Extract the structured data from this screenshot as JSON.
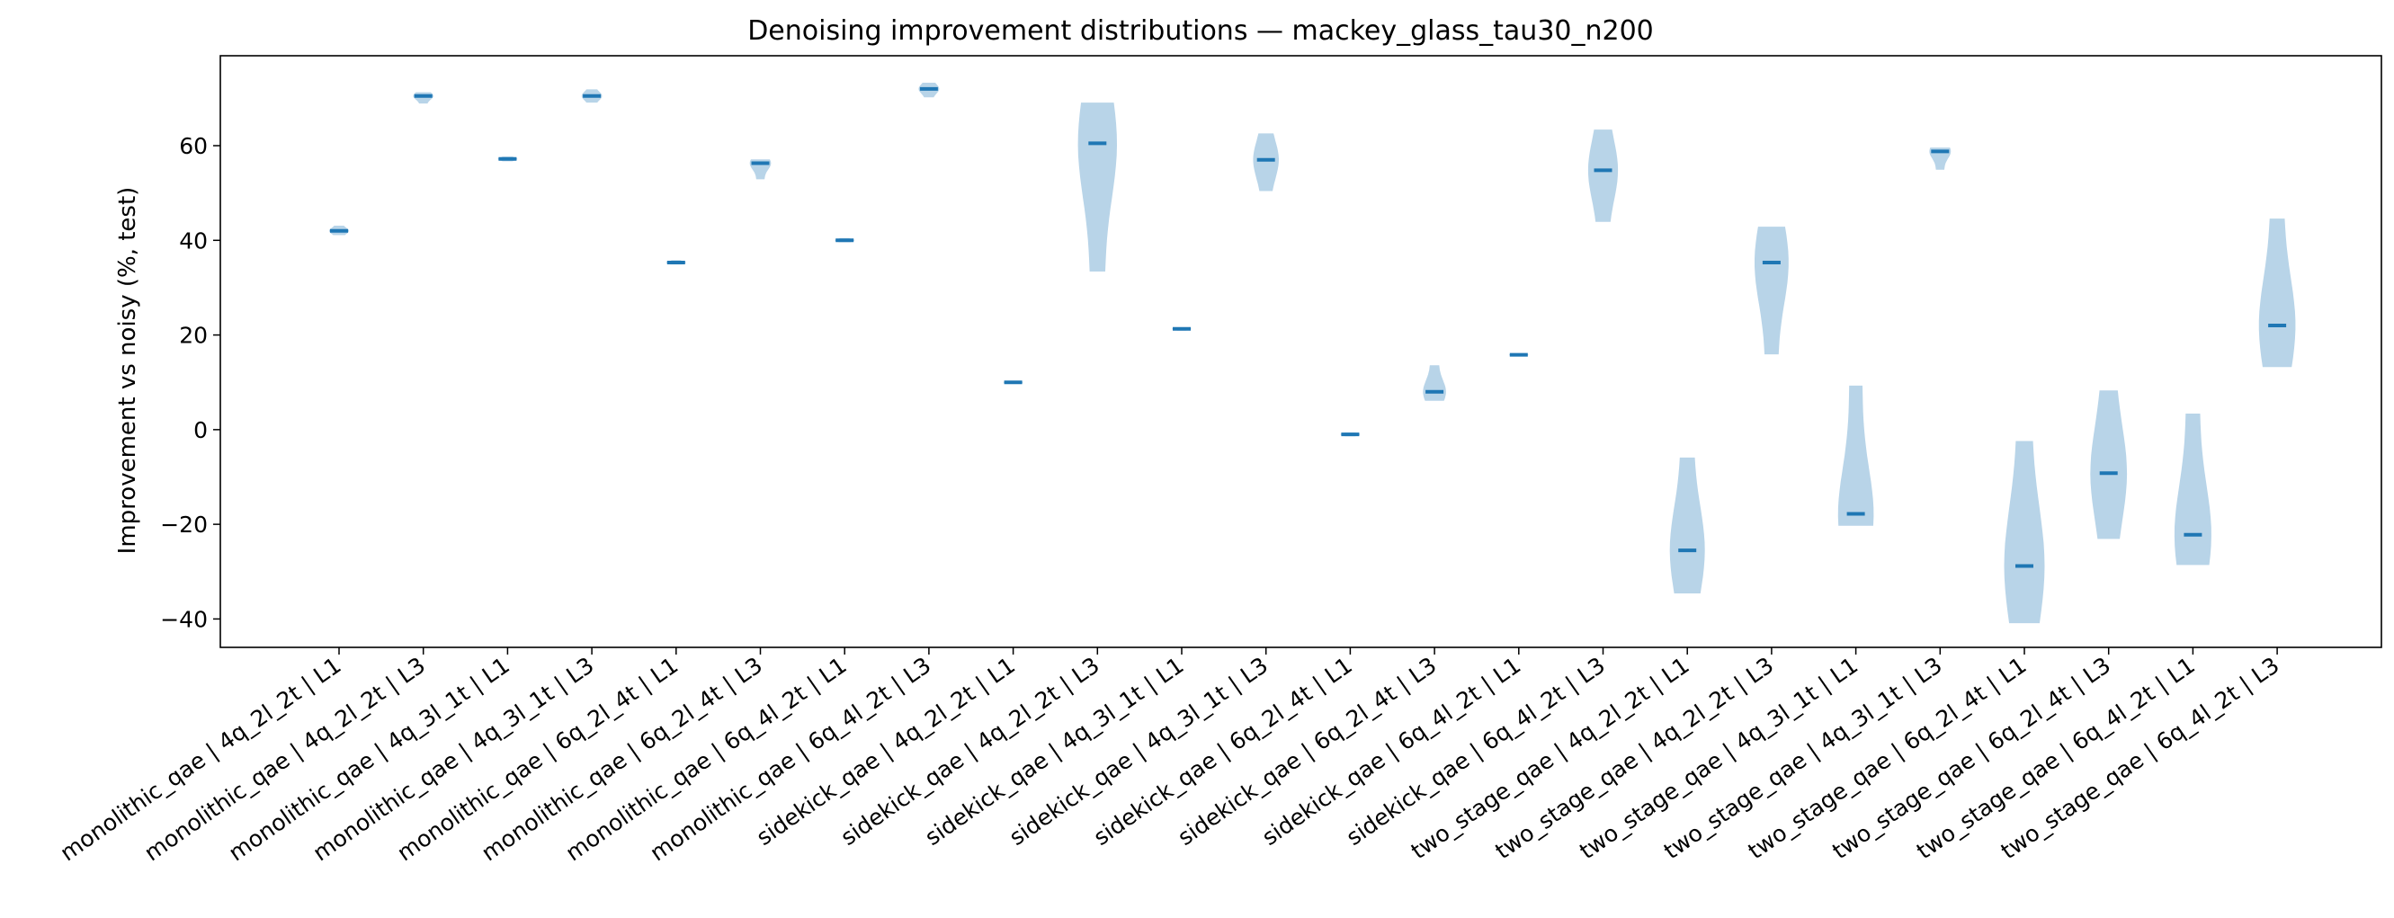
{
  "chart_data": {
    "type": "violin",
    "title": "Denoising improvement distributions — mackey_glass_tau30_n200",
    "xlabel": "",
    "ylabel": "Improvement vs noisy (%, test)",
    "ylim": [
      -46,
      79
    ],
    "yticks": [
      -40,
      -20,
      0,
      20,
      40,
      60
    ],
    "grid": false,
    "colors": {
      "body": "#b8d4e8",
      "median": "#1f77b4",
      "axis": "#000000"
    },
    "categories": [
      "monolithic_qae | 4q_2l_2t | L1",
      "monolithic_qae | 4q_2l_2t | L3",
      "monolithic_qae | 4q_3l_1t | L1",
      "monolithic_qae | 4q_3l_1t | L3",
      "monolithic_qae | 6q_2l_4t | L1",
      "monolithic_qae | 6q_2l_4t | L3",
      "monolithic_qae | 6q_4l_2t | L1",
      "monolithic_qae | 6q_4l_2t | L3",
      "sidekick_qae | 4q_2l_2t | L1",
      "sidekick_qae | 4q_2l_2t | L3",
      "sidekick_qae | 4q_3l_1t | L1",
      "sidekick_qae | 4q_3l_1t | L3",
      "sidekick_qae | 6q_2l_4t | L1",
      "sidekick_qae | 6q_2l_4t | L3",
      "sidekick_qae | 6q_4l_2t | L1",
      "sidekick_qae | 6q_4l_2t | L3",
      "two_stage_qae | 4q_2l_2t | L1",
      "two_stage_qae | 4q_2l_2t | L3",
      "two_stage_qae | 4q_3l_1t | L1",
      "two_stage_qae | 4q_3l_1t | L3",
      "two_stage_qae | 6q_2l_4t | L1",
      "two_stage_qae | 6q_2l_4t | L3",
      "two_stage_qae | 6q_4l_2t | L1",
      "two_stage_qae | 6q_4l_2t | L3"
    ],
    "series": [
      {
        "min": 41.2,
        "max": 43.0,
        "median": 42.0
      },
      {
        "min": 69.0,
        "max": 71.2,
        "median": 70.5
      },
      {
        "min": 56.8,
        "max": 57.6,
        "median": 57.2
      },
      {
        "min": 69.2,
        "max": 71.8,
        "median": 70.5
      },
      {
        "min": 35.0,
        "max": 35.7,
        "median": 35.3
      },
      {
        "min": 53.0,
        "max": 57.0,
        "median": 56.3
      },
      {
        "min": 39.7,
        "max": 40.4,
        "median": 40.0
      },
      {
        "min": 70.3,
        "max": 73.2,
        "median": 72.0
      },
      {
        "min": 9.8,
        "max": 10.2,
        "median": 10.0
      },
      {
        "min": 33.5,
        "max": 69.0,
        "median": 60.5
      },
      {
        "min": 21.0,
        "max": 21.5,
        "median": 21.3
      },
      {
        "min": 50.5,
        "max": 62.5,
        "median": 57.0
      },
      {
        "min": -1.3,
        "max": -0.7,
        "median": -1.0
      },
      {
        "min": 6.2,
        "max": 13.5,
        "median": 8.0
      },
      {
        "min": 15.6,
        "max": 16.0,
        "median": 15.8
      },
      {
        "min": 44.0,
        "max": 63.3,
        "median": 54.8
      },
      {
        "min": -34.5,
        "max": -6.0,
        "median": -25.5
      },
      {
        "min": 16.0,
        "max": 42.8,
        "median": 35.3
      },
      {
        "min": -20.2,
        "max": 9.2,
        "median": -17.8
      },
      {
        "min": 55.0,
        "max": 59.5,
        "median": 58.8
      },
      {
        "min": -40.8,
        "max": -2.5,
        "median": -28.8
      },
      {
        "min": -23.0,
        "max": 8.2,
        "median": -9.2
      },
      {
        "min": -28.5,
        "max": 3.3,
        "median": -22.2
      },
      {
        "min": 13.3,
        "max": 44.5,
        "median": 22.0
      }
    ]
  }
}
